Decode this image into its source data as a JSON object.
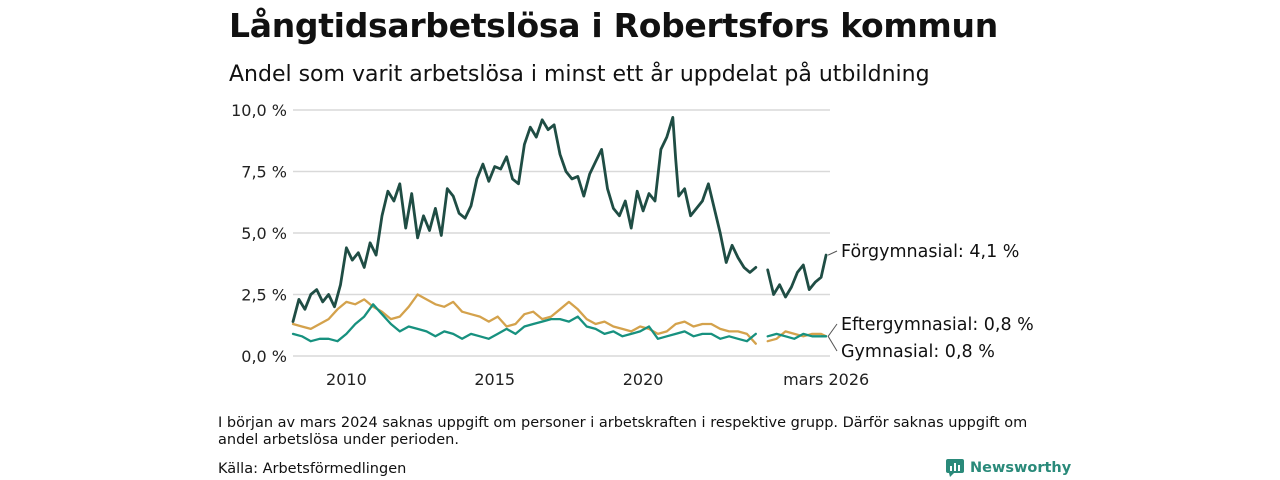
{
  "title": "Långtidsarbetslösa i Robertsfors kommun",
  "subtitle": "Andel som varit arbetslösa i minst ett år uppdelat på utbildning",
  "note": "I början av mars 2024 saknas uppgift om personer i arbetskraften i respektive grupp. Därför saknas uppgift om andel arbetslösa under perioden.",
  "source": "Källa: Arbetsförmedlingen",
  "brand": "Newsworthy",
  "colors": {
    "forgymnasial": "#1f4d44",
    "eftergymnasial": "#d4a24c",
    "gymnasial": "#17917f",
    "grid": "#d9d9d9"
  },
  "chart_data": {
    "type": "line",
    "title": "Långtidsarbetslösa i Robertsfors kommun",
    "xlabel": "",
    "ylabel": "",
    "xlim": [
      2008.2,
      2026.3
    ],
    "ylim": [
      0,
      10
    ],
    "y_ticks": [
      0,
      2.5,
      5,
      7.5,
      10
    ],
    "y_tick_labels": [
      "0,0 %",
      "2,5 %",
      "5,0 %",
      "7,5 %",
      "10,0 %"
    ],
    "x_ticks": [
      2010,
      2015,
      2020,
      2026.17
    ],
    "x_tick_labels": [
      "2010",
      "2015",
      "2020",
      "mars 2026"
    ],
    "gap": [
      2023.8,
      2024.2
    ],
    "series": [
      {
        "name": "Förgymnasial",
        "end_label": "Förgymnasial: 4,1 %",
        "x": [
          2008.2,
          2008.4,
          2008.6,
          2008.8,
          2009.0,
          2009.2,
          2009.4,
          2009.6,
          2009.8,
          2010.0,
          2010.2,
          2010.4,
          2010.6,
          2010.8,
          2011.0,
          2011.2,
          2011.4,
          2011.6,
          2011.8,
          2012.0,
          2012.2,
          2012.4,
          2012.6,
          2012.8,
          2013.0,
          2013.2,
          2013.4,
          2013.6,
          2013.8,
          2014.0,
          2014.2,
          2014.4,
          2014.6,
          2014.8,
          2015.0,
          2015.2,
          2015.4,
          2015.6,
          2015.8,
          2016.0,
          2016.2,
          2016.4,
          2016.6,
          2016.8,
          2017.0,
          2017.2,
          2017.4,
          2017.6,
          2017.8,
          2018.0,
          2018.2,
          2018.4,
          2018.6,
          2018.8,
          2019.0,
          2019.2,
          2019.4,
          2019.6,
          2019.8,
          2020.0,
          2020.2,
          2020.4,
          2020.6,
          2020.8,
          2021.0,
          2021.1,
          2021.2,
          2021.4,
          2021.6,
          2021.8,
          2022.0,
          2022.2,
          2022.4,
          2022.6,
          2022.8,
          2023.0,
          2023.2,
          2023.4,
          2023.6,
          2023.8,
          2024.2,
          2024.4,
          2024.6,
          2024.8,
          2025.0,
          2025.2,
          2025.4,
          2025.6,
          2025.8,
          2026.0,
          2026.17
        ],
        "values": [
          1.4,
          2.3,
          1.9,
          2.5,
          2.7,
          2.2,
          2.5,
          2.0,
          2.9,
          4.4,
          3.9,
          4.2,
          3.6,
          4.6,
          4.1,
          5.7,
          6.7,
          6.3,
          7.0,
          5.2,
          6.6,
          4.8,
          5.7,
          5.1,
          6.0,
          4.9,
          6.8,
          6.5,
          5.8,
          5.6,
          6.1,
          7.2,
          7.8,
          7.1,
          7.7,
          7.6,
          8.1,
          7.2,
          7.0,
          8.6,
          9.3,
          8.9,
          9.6,
          9.2,
          9.4,
          8.2,
          7.5,
          7.2,
          7.3,
          6.5,
          7.4,
          7.9,
          8.4,
          6.8,
          6.0,
          5.7,
          6.3,
          5.2,
          6.7,
          5.9,
          6.6,
          6.3,
          8.4,
          8.9,
          9.7,
          8.0,
          6.5,
          6.8,
          5.7,
          6.0,
          6.3,
          7.0,
          6.0,
          5.0,
          3.8,
          4.5,
          4.0,
          3.6,
          3.4,
          3.6,
          3.5,
          2.5,
          2.9,
          2.4,
          2.8,
          3.4,
          3.7,
          2.7,
          3.0,
          3.2,
          4.1
        ]
      },
      {
        "name": "Eftergymnasial",
        "end_label": "Eftergymnasial: 0,8 %",
        "x": [
          2008.2,
          2008.5,
          2008.8,
          2009.1,
          2009.4,
          2009.7,
          2010.0,
          2010.3,
          2010.6,
          2010.9,
          2011.2,
          2011.5,
          2011.8,
          2012.1,
          2012.4,
          2012.7,
          2013.0,
          2013.3,
          2013.6,
          2013.9,
          2014.2,
          2014.5,
          2014.8,
          2015.1,
          2015.4,
          2015.7,
          2016.0,
          2016.3,
          2016.6,
          2016.9,
          2017.2,
          2017.5,
          2017.8,
          2018.1,
          2018.4,
          2018.7,
          2019.0,
          2019.3,
          2019.6,
          2019.9,
          2020.2,
          2020.5,
          2020.8,
          2021.1,
          2021.4,
          2021.7,
          2022.0,
          2022.3,
          2022.6,
          2022.9,
          2023.2,
          2023.5,
          2023.8,
          2024.2,
          2024.5,
          2024.8,
          2025.1,
          2025.4,
          2025.7,
          2026.0,
          2026.17
        ],
        "values": [
          1.3,
          1.2,
          1.1,
          1.3,
          1.5,
          1.9,
          2.2,
          2.1,
          2.3,
          2.0,
          1.8,
          1.5,
          1.6,
          2.0,
          2.5,
          2.3,
          2.1,
          2.0,
          2.2,
          1.8,
          1.7,
          1.6,
          1.4,
          1.6,
          1.2,
          1.3,
          1.7,
          1.8,
          1.5,
          1.6,
          1.9,
          2.2,
          1.9,
          1.5,
          1.3,
          1.4,
          1.2,
          1.1,
          1.0,
          1.2,
          1.1,
          0.9,
          1.0,
          1.3,
          1.4,
          1.2,
          1.3,
          1.3,
          1.1,
          1.0,
          1.0,
          0.9,
          0.5,
          0.6,
          0.7,
          1.0,
          0.9,
          0.8,
          0.9,
          0.9,
          0.8
        ]
      },
      {
        "name": "Gymnasial",
        "end_label": "Gymnasial: 0,8 %",
        "x": [
          2008.2,
          2008.5,
          2008.8,
          2009.1,
          2009.4,
          2009.7,
          2010.0,
          2010.3,
          2010.6,
          2010.9,
          2011.2,
          2011.5,
          2011.8,
          2012.1,
          2012.4,
          2012.7,
          2013.0,
          2013.3,
          2013.6,
          2013.9,
          2014.2,
          2014.5,
          2014.8,
          2015.1,
          2015.4,
          2015.7,
          2016.0,
          2016.3,
          2016.6,
          2016.9,
          2017.2,
          2017.5,
          2017.8,
          2018.1,
          2018.4,
          2018.7,
          2019.0,
          2019.3,
          2019.6,
          2019.9,
          2020.2,
          2020.5,
          2020.8,
          2021.1,
          2021.4,
          2021.7,
          2022.0,
          2022.3,
          2022.6,
          2022.9,
          2023.2,
          2023.5,
          2023.8,
          2024.2,
          2024.5,
          2024.8,
          2025.1,
          2025.4,
          2025.7,
          2026.0,
          2026.17
        ],
        "values": [
          0.9,
          0.8,
          0.6,
          0.7,
          0.7,
          0.6,
          0.9,
          1.3,
          1.6,
          2.1,
          1.7,
          1.3,
          1.0,
          1.2,
          1.1,
          1.0,
          0.8,
          1.0,
          0.9,
          0.7,
          0.9,
          0.8,
          0.7,
          0.9,
          1.1,
          0.9,
          1.2,
          1.3,
          1.4,
          1.5,
          1.5,
          1.4,
          1.6,
          1.2,
          1.1,
          0.9,
          1.0,
          0.8,
          0.9,
          1.0,
          1.2,
          0.7,
          0.8,
          0.9,
          1.0,
          0.8,
          0.9,
          0.9,
          0.7,
          0.8,
          0.7,
          0.6,
          0.9,
          0.8,
          0.9,
          0.8,
          0.7,
          0.9,
          0.8,
          0.8,
          0.8
        ]
      }
    ]
  }
}
